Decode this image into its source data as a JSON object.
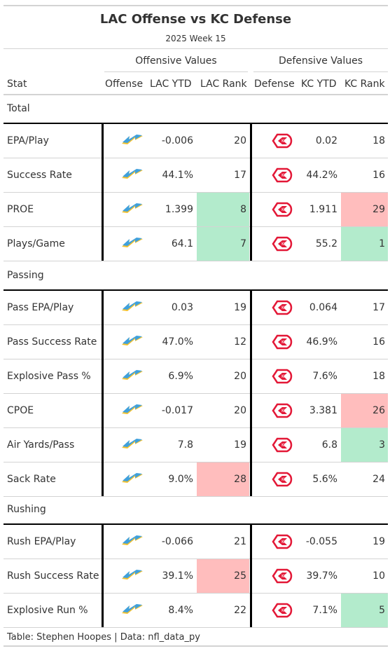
{
  "header": {
    "title": "LAC Offense vs KC Defense",
    "subtitle": "2025 Week 15"
  },
  "spanners": {
    "offense": "Offensive Values",
    "defense": "Defensive Values"
  },
  "columns": {
    "stat": "Stat",
    "offense": "Offense",
    "lac_ytd": "LAC YTD",
    "lac_rank": "LAC Rank",
    "defense": "Defense",
    "kc_ytd": "KC YTD",
    "kc_rank": "KC Rank"
  },
  "colors": {
    "good": "#b3ebcc",
    "bad": "#ffbdbd",
    "chargers_blue": "#3fa0dc",
    "chargers_gold": "#f2c12e",
    "chiefs_red": "#e31837"
  },
  "icons": {
    "offense": "chargers-bolt-logo",
    "defense": "chiefs-arrowhead-logo"
  },
  "sections": [
    {
      "name": "Total",
      "rows": [
        {
          "stat": "EPA/Play",
          "lac_ytd": "-0.006",
          "lac_rank": "20",
          "lac_fill": "none",
          "kc_ytd": "0.02",
          "kc_rank": "18",
          "kc_fill": "none"
        },
        {
          "stat": "Success Rate",
          "lac_ytd": "44.1%",
          "lac_rank": "17",
          "lac_fill": "none",
          "kc_ytd": "44.2%",
          "kc_rank": "16",
          "kc_fill": "none"
        },
        {
          "stat": "PROE",
          "lac_ytd": "1.399",
          "lac_rank": "8",
          "lac_fill": "good",
          "kc_ytd": "1.911",
          "kc_rank": "29",
          "kc_fill": "bad"
        },
        {
          "stat": "Plays/Game",
          "lac_ytd": "64.1",
          "lac_rank": "7",
          "lac_fill": "good",
          "kc_ytd": "55.2",
          "kc_rank": "1",
          "kc_fill": "good"
        }
      ]
    },
    {
      "name": "Passing",
      "rows": [
        {
          "stat": "Pass EPA/Play",
          "lac_ytd": "0.03",
          "lac_rank": "19",
          "lac_fill": "none",
          "kc_ytd": "0.064",
          "kc_rank": "17",
          "kc_fill": "none"
        },
        {
          "stat": "Pass Success Rate",
          "lac_ytd": "47.0%",
          "lac_rank": "12",
          "lac_fill": "none",
          "kc_ytd": "46.9%",
          "kc_rank": "16",
          "kc_fill": "none"
        },
        {
          "stat": "Explosive Pass %",
          "lac_ytd": "6.9%",
          "lac_rank": "20",
          "lac_fill": "none",
          "kc_ytd": "7.6%",
          "kc_rank": "18",
          "kc_fill": "none"
        },
        {
          "stat": "CPOE",
          "lac_ytd": "-0.017",
          "lac_rank": "20",
          "lac_fill": "none",
          "kc_ytd": "3.381",
          "kc_rank": "26",
          "kc_fill": "bad"
        },
        {
          "stat": "Air Yards/Pass",
          "lac_ytd": "7.8",
          "lac_rank": "19",
          "lac_fill": "none",
          "kc_ytd": "6.8",
          "kc_rank": "3",
          "kc_fill": "good"
        },
        {
          "stat": "Sack Rate",
          "lac_ytd": "9.0%",
          "lac_rank": "28",
          "lac_fill": "bad",
          "kc_ytd": "5.6%",
          "kc_rank": "24",
          "kc_fill": "none"
        }
      ]
    },
    {
      "name": "Rushing",
      "rows": [
        {
          "stat": "Rush EPA/Play",
          "lac_ytd": "-0.066",
          "lac_rank": "21",
          "lac_fill": "none",
          "kc_ytd": "-0.055",
          "kc_rank": "19",
          "kc_fill": "none"
        },
        {
          "stat": "Rush Success Rate",
          "lac_ytd": "39.1%",
          "lac_rank": "25",
          "lac_fill": "bad",
          "kc_ytd": "39.7%",
          "kc_rank": "10",
          "kc_fill": "none"
        },
        {
          "stat": "Explosive Run %",
          "lac_ytd": "8.4%",
          "lac_rank": "22",
          "lac_fill": "none",
          "kc_ytd": "7.1%",
          "kc_rank": "5",
          "kc_fill": "good"
        }
      ]
    }
  ],
  "footer": "Table: Stephen Hoopes | Data: nfl_data_py"
}
